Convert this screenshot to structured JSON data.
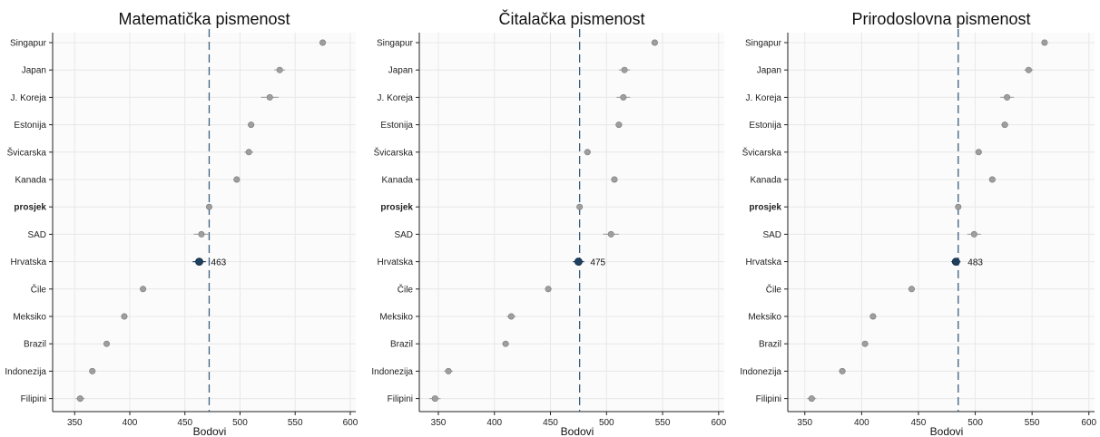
{
  "chart_data": [
    {
      "type": "scatter",
      "title": "Matematička pismenost",
      "xlabel": "Bodovi",
      "ylabel": "",
      "xlim": [
        330,
        605
      ],
      "xticks": [
        350,
        400,
        450,
        500,
        550,
        600
      ],
      "categories": [
        "Singapur",
        "Japan",
        "J. Koreja",
        "Estonija",
        "Švicarska",
        "Kanada",
        "prosjek",
        "SAD",
        "Hrvatska",
        "Čile",
        "Meksiko",
        "Brazil",
        "Indonezija",
        "Filipini"
      ],
      "bold_category": "prosjek",
      "highlight_category": "Hrvatska",
      "values": [
        575,
        536,
        527,
        510,
        508,
        497,
        472,
        465,
        463,
        412,
        395,
        379,
        366,
        355
      ],
      "ci_halfwidth": [
        3,
        5,
        8,
        3,
        4,
        3,
        1,
        7,
        6,
        3,
        3,
        2,
        3,
        4
      ],
      "reference_line": 472,
      "highlight_label": "463",
      "grid": true,
      "colors": {
        "point": "#9e9e9e",
        "highlight": "#1f3f5f",
        "refline": "#3d5f7f",
        "grid": "#e8e8e8"
      }
    },
    {
      "type": "scatter",
      "title": "Čitalačka pismenost",
      "xlabel": "Bodovi",
      "ylabel": "",
      "xlim": [
        333,
        605
      ],
      "xticks": [
        350,
        400,
        450,
        500,
        550,
        600
      ],
      "categories": [
        "Singapur",
        "Japan",
        "J. Koreja",
        "Estonija",
        "Švicarska",
        "Kanada",
        "prosjek",
        "SAD",
        "Hrvatska",
        "Čile",
        "Meksiko",
        "Brazil",
        "Indonezija",
        "Filipini"
      ],
      "bold_category": "prosjek",
      "highlight_category": "Hrvatska",
      "values": [
        543,
        516,
        515,
        511,
        483,
        507,
        476,
        504,
        475,
        448,
        415,
        410,
        359,
        347
      ],
      "ci_halfwidth": [
        3,
        5,
        6,
        3,
        3,
        3,
        1,
        7,
        5,
        3,
        4,
        3,
        4,
        5
      ],
      "reference_line": 476,
      "highlight_label": "475",
      "grid": true,
      "colors": {
        "point": "#9e9e9e",
        "highlight": "#1f3f5f",
        "refline": "#3d5f7f",
        "grid": "#e8e8e8"
      }
    },
    {
      "type": "scatter",
      "title": "Prirodoslovna pismenost",
      "xlabel": "Bodovi",
      "ylabel": "",
      "xlim": [
        335,
        605
      ],
      "xticks": [
        350,
        400,
        450,
        500,
        550,
        600
      ],
      "categories": [
        "Singapur",
        "Japan",
        "J. Koreja",
        "Estonija",
        "Švicarska",
        "Kanada",
        "prosjek",
        "SAD",
        "Hrvatska",
        "Čile",
        "Meksiko",
        "Brazil",
        "Indonezija",
        "Filipini"
      ],
      "bold_category": "prosjek",
      "highlight_category": "Hrvatska",
      "values": [
        561,
        547,
        528,
        526,
        503,
        515,
        485,
        499,
        483,
        444,
        410,
        403,
        383,
        356
      ],
      "ci_halfwidth": [
        2,
        4,
        6,
        3,
        3,
        3,
        1,
        6,
        4,
        3,
        3,
        2,
        3,
        4
      ],
      "reference_line": 485,
      "highlight_label": "483",
      "grid": true,
      "colors": {
        "point": "#9e9e9e",
        "highlight": "#1f3f5f",
        "refline": "#3d5f7f",
        "grid": "#e8e8e8"
      }
    }
  ]
}
